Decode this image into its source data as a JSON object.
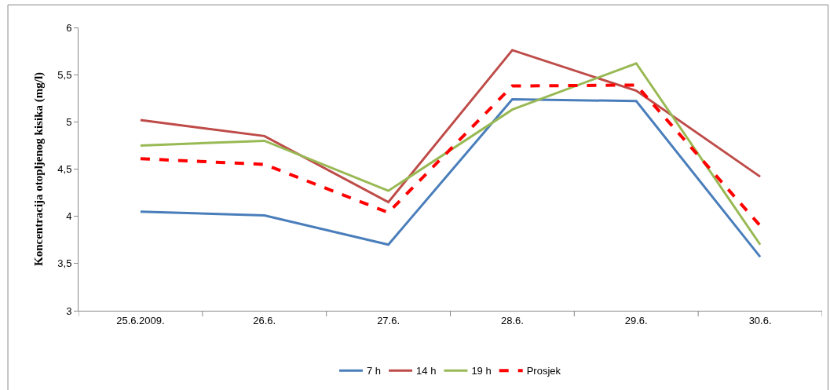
{
  "chart_data": {
    "type": "line",
    "ylabel": "Koncentracija otopljenog kisika (mg/l)",
    "categories": [
      "25.6.2009.",
      "26.6.",
      "27.6.",
      "28.6.",
      "29.6.",
      "30.6."
    ],
    "series": [
      {
        "name": "7 h",
        "color": "#4a7ebb",
        "values": [
          4.05,
          4.01,
          3.7,
          5.24,
          5.22,
          3.57
        ]
      },
      {
        "name": "14 h",
        "color": "#be4b48",
        "values": [
          5.02,
          4.85,
          4.15,
          5.76,
          5.33,
          4.42
        ]
      },
      {
        "name": "19 h",
        "color": "#98b954",
        "values": [
          4.75,
          4.8,
          4.27,
          5.13,
          5.62,
          3.7
        ]
      },
      {
        "name": "Prosjek",
        "color": "#ff0000",
        "values": [
          4.61,
          4.55,
          4.04,
          5.38,
          5.39,
          3.9
        ],
        "line_style": "dashed"
      }
    ],
    "ylim": [
      3,
      6
    ],
    "yticks": [
      3,
      {
        "value": 3.5,
        "label": "3,5"
      },
      4,
      {
        "value": 4.5,
        "label": "4,5"
      },
      5,
      {
        "value": 5.5,
        "label": "5,5"
      },
      6
    ],
    "legend": "bottom",
    "marker": "none"
  }
}
